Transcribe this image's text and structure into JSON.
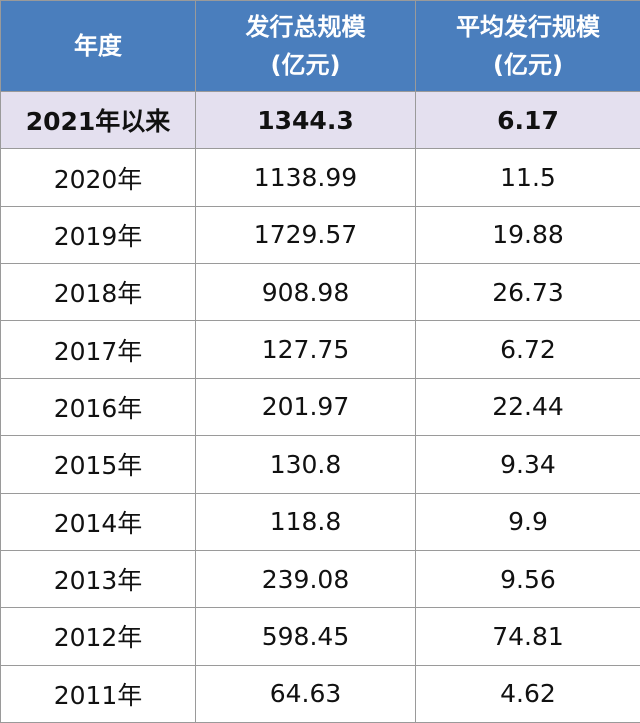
{
  "table": {
    "header": [
      [
        "年度"
      ],
      [
        "发行总规模",
        "(亿元)"
      ],
      [
        "平均发行规模",
        "(亿元)"
      ]
    ],
    "rows": [
      [
        "2021年以来",
        1344.3,
        6.17
      ],
      [
        "2020年",
        1138.99,
        11.5
      ],
      [
        "2019年",
        1729.57,
        19.88
      ],
      [
        "2018年",
        908.98,
        26.73
      ],
      [
        "2017年",
        127.75,
        6.72
      ],
      [
        "2016年",
        201.97,
        22.44
      ],
      [
        "2015年",
        130.8,
        9.34
      ],
      [
        "2014年",
        118.8,
        9.9
      ],
      [
        "2013年",
        239.08,
        9.56
      ],
      [
        "2012年",
        598.45,
        74.81
      ],
      [
        "2011年",
        64.63,
        4.62
      ]
    ]
  }
}
